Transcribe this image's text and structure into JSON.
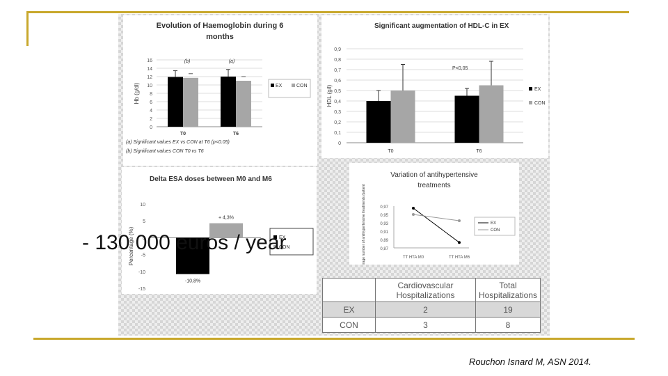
{
  "colors": {
    "ex": "#000000",
    "con": "#a6a6a6",
    "accent": "#c8a82c"
  },
  "overlay_text": "- 130 000 euros / year",
  "citation": "Rouchon Isnard M, ASN 2014.",
  "chart_data": [
    {
      "type": "bar",
      "title": "Evolution of Haemoglobin during 6 months",
      "ylabel": "Hb (g/dl)",
      "ylim": [
        0,
        16
      ],
      "yticks": [
        0,
        2,
        4,
        6,
        8,
        10,
        12,
        14,
        16
      ],
      "categories": [
        "T0",
        "T6"
      ],
      "series": [
        {
          "name": "EX",
          "values": [
            11.9,
            12.0
          ],
          "errors": [
            1.5,
            1.7
          ]
        },
        {
          "name": "CON",
          "values": [
            11.7,
            11.0
          ],
          "errors": [
            0,
            0
          ]
        }
      ],
      "annotations": [
        "(b)",
        "(a)"
      ],
      "footnotes": [
        "(a) Significant values EX vs CON at T6 (p<0.05)",
        "(b) Significant values CON T0 vs T6"
      ],
      "legend": "right"
    },
    {
      "type": "bar",
      "title": "Significant augmentation of HDL-C in EX",
      "ylabel": "HDL (g/l)",
      "ylim": [
        0,
        0.9
      ],
      "yticks": [
        "0",
        "0,1",
        "0,2",
        "0,3",
        "0,4",
        "0,5",
        "0,6",
        "0,7",
        "0,8",
        "0,9"
      ],
      "categories": [
        "T0",
        "T6"
      ],
      "series": [
        {
          "name": "EX",
          "values": [
            0.4,
            0.45
          ],
          "errors": [
            0.1,
            0.07
          ]
        },
        {
          "name": "CON",
          "values": [
            0.5,
            0.55
          ],
          "errors": [
            0.25,
            0.23
          ]
        }
      ],
      "annotations": [
        "P<0,05"
      ],
      "legend": "right"
    },
    {
      "type": "bar",
      "title": "Delta ESA doses between M0 and M6",
      "ylabel": "Percentage (%)",
      "ylim": [
        -15,
        10
      ],
      "yticks": [
        10,
        5,
        0,
        -5,
        -10,
        -15
      ],
      "series": [
        {
          "name": "EX",
          "values": [
            -10.8
          ],
          "label": "-10,8%"
        },
        {
          "name": "CON",
          "values": [
            4.3
          ],
          "label": "+ 4,3%"
        }
      ],
      "legend": "right"
    },
    {
      "type": "line",
      "title": "Variation of antihypertensive treatments",
      "ylabel": "Average number of antihypertensive treatments /patient",
      "ylim": [
        0.87,
        0.97
      ],
      "yticks": [
        "0,97",
        "0,95",
        "0,93",
        "0,91",
        "0,89",
        "0,87"
      ],
      "categories": [
        "TT HTA M0",
        "TT HTA M6"
      ],
      "series": [
        {
          "name": "EX",
          "values": [
            0.965,
            0.883
          ]
        },
        {
          "name": "CON",
          "values": [
            0.95,
            0.935
          ]
        }
      ],
      "legend": "right"
    },
    {
      "type": "table",
      "columns": [
        "",
        "Cardiovascular Hospitalizations",
        "Total Hospitalizations"
      ],
      "rows": [
        [
          "EX",
          "2",
          "19"
        ],
        [
          "CON",
          "3",
          "8"
        ]
      ]
    }
  ]
}
